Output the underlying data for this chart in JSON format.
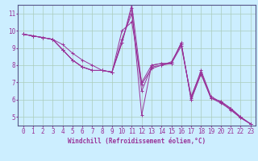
{
  "title": "",
  "xlabel": "Windchill (Refroidissement éolien,°C)",
  "ylabel": "",
  "bg_color": "#cceeff",
  "line_color": "#993399",
  "grid_color": "#aaccbb",
  "axis_color": "#555588",
  "text_color": "#993399",
  "xlim": [
    -0.5,
    23.5
  ],
  "ylim": [
    4.5,
    11.5
  ],
  "xticks": [
    0,
    1,
    2,
    3,
    4,
    5,
    6,
    7,
    8,
    9,
    10,
    11,
    12,
    13,
    14,
    15,
    16,
    17,
    18,
    19,
    20,
    21,
    22,
    23
  ],
  "yticks": [
    5,
    6,
    7,
    8,
    9,
    10,
    11
  ],
  "series": [
    [
      9.8,
      9.7,
      9.6,
      9.5,
      8.9,
      8.3,
      7.9,
      7.7,
      7.7,
      7.6,
      9.3,
      11.3,
      5.1,
      8.0,
      8.1,
      8.1,
      9.3,
      6.0,
      7.5,
      6.1,
      5.9,
      5.5,
      5.0,
      4.6
    ],
    [
      9.8,
      9.7,
      9.6,
      9.5,
      8.9,
      8.3,
      7.9,
      7.7,
      7.7,
      7.6,
      10.0,
      10.5,
      7.0,
      8.0,
      8.1,
      8.1,
      9.3,
      6.0,
      7.5,
      6.1,
      5.9,
      5.5,
      5.0,
      4.6
    ],
    [
      9.8,
      9.7,
      9.6,
      9.5,
      8.9,
      8.3,
      7.9,
      7.7,
      7.7,
      7.6,
      9.3,
      11.5,
      6.9,
      7.8,
      8.0,
      8.2,
      9.2,
      6.1,
      7.7,
      6.2,
      5.85,
      5.4,
      4.95,
      4.6
    ],
    [
      9.8,
      9.7,
      9.6,
      9.5,
      9.2,
      8.7,
      8.3,
      8.0,
      7.7,
      7.6,
      9.5,
      11.0,
      6.5,
      7.9,
      8.0,
      8.1,
      9.1,
      6.2,
      7.6,
      6.1,
      5.8,
      5.45,
      4.95,
      4.6
    ]
  ],
  "tick_fontsize": 5.5,
  "xlabel_fontsize": 5.5
}
